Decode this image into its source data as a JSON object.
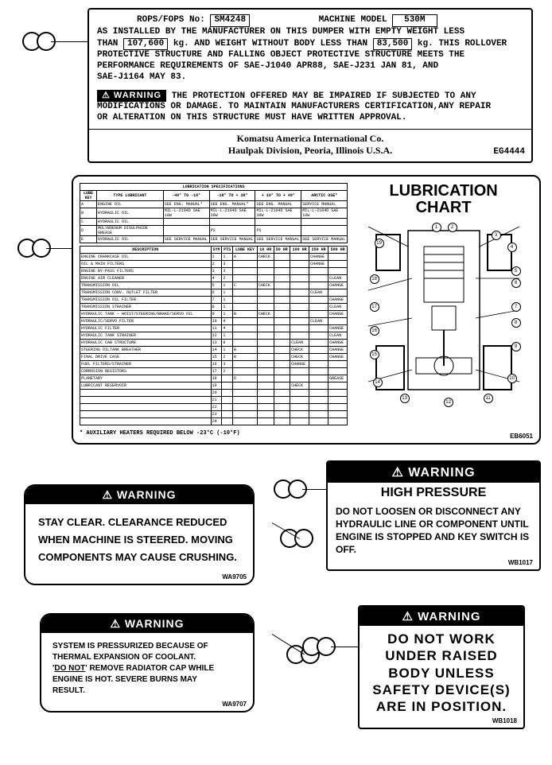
{
  "plate1": {
    "rops_label": "ROPS/FOPS No:",
    "rops_value": "SM4248",
    "model_label": "MACHINE MODEL",
    "model_value": "530M",
    "body_line1": "AS INSTALLED BY THE MANUFACTURER ON THIS DUMPER WITH EMPTY WEIGHT LESS",
    "body_line2_pre": "THAN",
    "weight1": "107,600",
    "body_line2_mid": "kg. AND WEIGHT WITHOUT BODY LESS THAN",
    "weight2": "83,500",
    "body_line2_post": "kg. THIS ROLLOVER",
    "body_line3": "PROTECTIVE STRUCTURE AND FALLING OBJECT PROTECTIVE STRUCTURE MEETS THE",
    "body_line4": "PERFORMANCE REQUIREMENTS OF SAE-J1040 APR88, SAE-J231 JAN 81, AND",
    "body_line5": "SAE-J1164 MAY 83.",
    "warn_label": "WARNING",
    "warn_text1": "THE PROTECTION OFFERED MAY BE IMPAIRED IF SUBJECTED TO ANY",
    "warn_text2": "MODIFICATIONS OR DAMAGE. TO MAINTAIN MANUFACTURERS CERTIFICATION,ANY REPAIR",
    "warn_text3": "OR ALTERATION ON THIS STRUCTURE MUST HAVE WRITTEN APPROVAL.",
    "mfr1": "Komatsu America International Co.",
    "mfr2": "Haulpak Division, Peoria, Illinois U.S.A.",
    "plate_id": "EG4444"
  },
  "lube": {
    "title1": "LUBRICATION",
    "title2": "CHART",
    "spec_header": "LUBRICATION SPECIFICATIONS",
    "col_lube_key": "LUBE KEY",
    "col_type": "TYPE LUBRICANT",
    "temp_cols": [
      "-40° TO -18°",
      "-18° TO + 38°",
      "+ 10° TO + 49°",
      "ARCTIC USE*"
    ],
    "lube_rows": [
      {
        "k": "A",
        "t": "ENGINE OIL",
        "c": [
          "SEE ENG. MANUAL*",
          "SEE ENG. MANUAL*",
          "SEE ENG. MANUAL",
          "SERVICE MANUAL"
        ]
      },
      {
        "k": "B",
        "t": "HYDRAULIC OIL",
        "c": [
          "MIL-L-2104D SAE 10W",
          "MIL-L-2104D SAE 30W",
          "MIL-L-2104D SAE 30W",
          "MIL-L-2104D SAE 10W"
        ]
      },
      {
        "k": "C",
        "t": "HYDRAULIC OIL",
        "c": [
          "",
          "",
          "",
          ""
        ]
      },
      {
        "k": "D",
        "t": "MOLYBDENUM DISULPHIDE GREASE",
        "c": [
          "",
          "PS",
          "PS",
          ""
        ]
      },
      {
        "k": "E",
        "t": "HYDRAULIC OIL",
        "c": [
          "SEE SERVICE MANUAL",
          "SEE SERVICE MANUAL",
          "SEE SERVICE MANUAL",
          "SEE SERVICE MANUAL"
        ]
      }
    ],
    "sched_cols": [
      "DESCRIPTION",
      "SYM",
      "PTS",
      "LUBE KEY",
      "10 HR",
      "50 HR",
      "100 HR",
      "250 HR",
      "500 HR"
    ],
    "sched_rows": [
      [
        "ENGINE CRANKCASE OIL",
        "1",
        "1",
        "A",
        "CHECK",
        "",
        "",
        "CHANGE",
        ""
      ],
      [
        "OIL & MAIN FILTERS",
        "2",
        "3",
        "",
        "",
        "",
        "",
        "CHANGE",
        ""
      ],
      [
        "ENGINE BY-PASS FILTERS",
        "3",
        "3",
        "",
        "",
        "",
        "",
        "",
        ""
      ],
      [
        "ENGINE AIR CLEANER",
        "4",
        "2",
        "",
        "",
        "",
        "",
        "",
        "CLEAN"
      ],
      [
        "TRANSMISSION OIL",
        "5",
        "1",
        "C",
        "CHECK",
        "",
        "",
        "",
        "CHANGE"
      ],
      [
        "TRANSMISSION CONV. OUTLET FILTER",
        "6",
        "1",
        "",
        "",
        "",
        "",
        "CLEAN",
        ""
      ],
      [
        "TRANSMISSION OIL FILTER",
        "7",
        "1",
        "",
        "",
        "",
        "",
        "",
        "CHANGE"
      ],
      [
        "TRANSMISSION STRAINER",
        "8",
        "1",
        "",
        "",
        "",
        "",
        "",
        "CLEAN"
      ],
      [
        "HYDRAULIC TANK — HOIST/STEERING/BRAKE/SERVO OIL",
        "9",
        "1",
        "B",
        "CHECK",
        "",
        "",
        "",
        "CHANGE"
      ],
      [
        "HYDRAULIC/SERVO FILTER",
        "10",
        "4",
        "",
        "",
        "",
        "",
        "CLEAN",
        ""
      ],
      [
        "HYDRAULIC FILTER",
        "11",
        "4",
        "",
        "",
        "",
        "",
        "",
        "CHANGE"
      ],
      [
        "HYDRAULIC TANK STRAINER",
        "12",
        "1",
        "",
        "",
        "",
        "",
        "",
        "CLEAN"
      ],
      [
        "HYDRAULIC CAB STRUCTURE",
        "13",
        "8",
        "",
        "",
        "",
        "CLEAN",
        "",
        "CHANGE"
      ],
      [
        "STEERING OILTANK BREATHER",
        "14",
        "1",
        "B",
        "",
        "",
        "CHECK",
        "",
        "CHANGE"
      ],
      [
        "FINAL DRIVE CASE",
        "15",
        "2",
        "B",
        "",
        "",
        "CHECK",
        "",
        "CHANGE"
      ],
      [
        "FUEL FILTERS/STRAINER",
        "16",
        "3",
        "",
        "",
        "",
        "CHANGE",
        "",
        ""
      ],
      [
        "CORROSION RESISTORS",
        "17",
        "2",
        "",
        "",
        "",
        "",
        "",
        ""
      ],
      [
        "PLANETARY",
        "18",
        "",
        "D",
        "",
        "",
        "",
        "",
        "GREASE"
      ],
      [
        "LUBRICANT RESERVOIR",
        "19",
        "",
        "",
        "",
        "",
        "CHECK",
        "",
        ""
      ],
      [
        "",
        "20",
        "",
        "",
        "",
        "",
        "",
        "",
        ""
      ],
      [
        "",
        "21",
        "",
        "",
        "",
        "",
        "",
        "",
        ""
      ],
      [
        "",
        "22",
        "",
        "",
        "",
        "",
        "",
        "",
        ""
      ],
      [
        "",
        "23",
        "",
        "",
        "",
        "",
        "",
        "",
        ""
      ],
      [
        "",
        "24",
        "",
        "",
        "",
        "",
        "",
        "",
        ""
      ]
    ],
    "aux_note": "* AUXILIARY HEATERS REQUIRED BELOW -23°C (-10°F)",
    "diagram_numbers": [
      1,
      2,
      3,
      4,
      5,
      6,
      7,
      8,
      9,
      10,
      11,
      12,
      13,
      14,
      15,
      16,
      17,
      18,
      19
    ],
    "plate_id": "EB6051"
  },
  "warn3": {
    "label": "WARNING",
    "text": "STAY CLEAR.  CLEARANCE REDUCED WHEN MACHINE IS STEERED.  MOVING COMPONENTS MAY CAUSE CRUSHING.",
    "id": "WA9705"
  },
  "warn4": {
    "label": "WARNING",
    "title": "HIGH PRESSURE",
    "text": "DO NOT LOOSEN OR DISCONNECT ANY HYDRAULIC LINE OR COMPONENT UNTIL ENGINE IS STOPPED AND KEY SWITCH IS OFF.",
    "id": "WB1017"
  },
  "warn5": {
    "label": "WARNING",
    "l1": "SYSTEM IS PRESSURIZED BECAUSE OF",
    "l2": "THERMAL EXPANSION OF COOLANT.",
    "l3_pre": "'",
    "l3_u": "DO NOT",
    "l3_post": "' REMOVE RADIATOR CAP WHILE",
    "l4": "ENGINE IS HOT. SEVERE BURNS MAY",
    "l5": "RESULT.",
    "id": "WA9707"
  },
  "warn6": {
    "label": "WARNING",
    "text": "DO NOT WORK UNDER RAISED BODY UNLESS SAFETY DEVICE(S) ARE IN POSITION.",
    "id": "WB1018"
  }
}
